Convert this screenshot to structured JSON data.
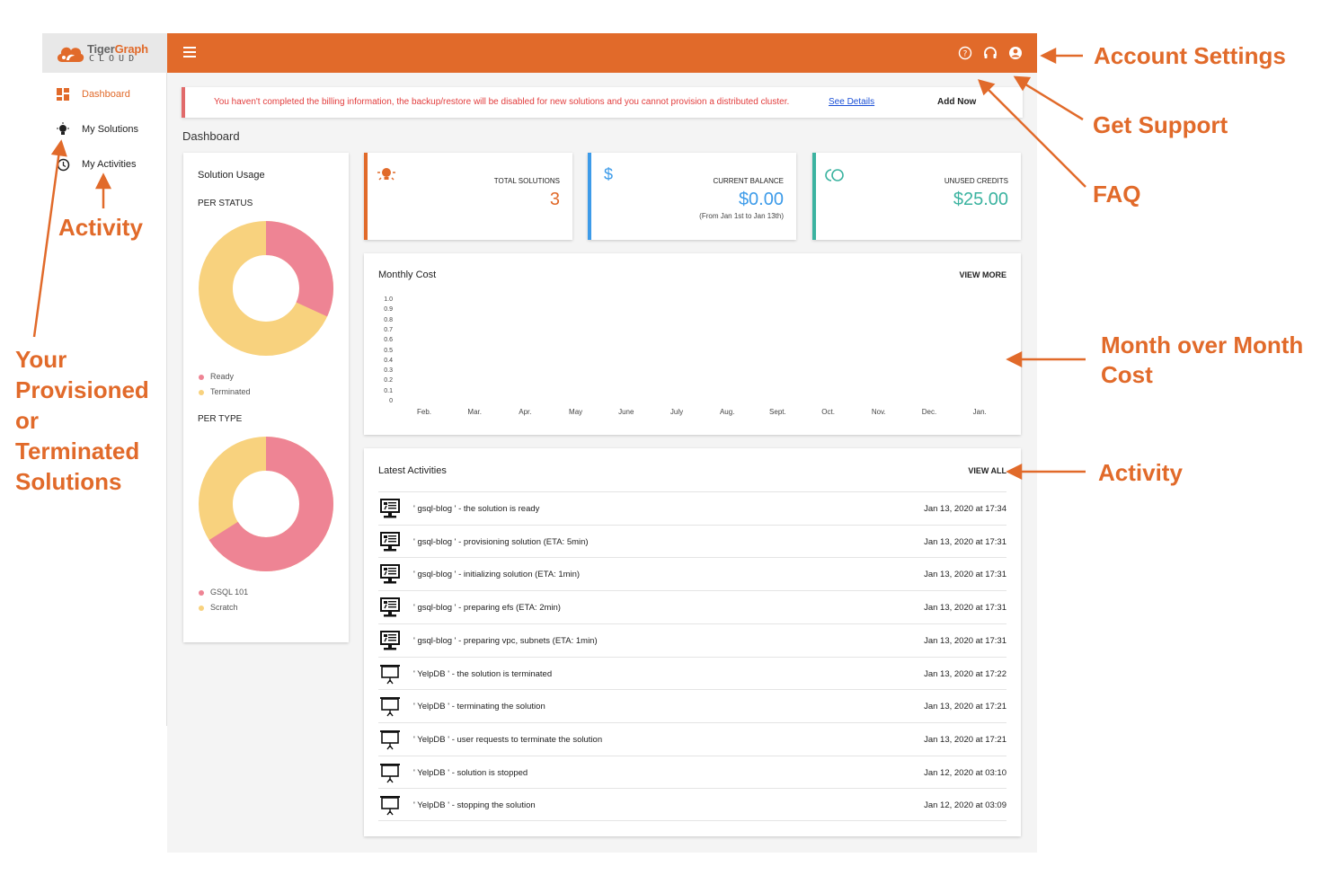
{
  "app": {
    "brand_word_a": "Tiger",
    "brand_word_b": "Graph",
    "brand_sub": "CLOUD",
    "accent_color": "#e16a2a"
  },
  "sidebar": {
    "items": [
      {
        "label": "Dashboard",
        "icon": "dashboard-grid-icon",
        "active": true
      },
      {
        "label": "My Solutions",
        "icon": "bulb-icon",
        "active": false
      },
      {
        "label": "My Activities",
        "icon": "clock-icon",
        "active": false
      }
    ]
  },
  "topbar": {
    "icons": [
      "help-icon",
      "headset-icon",
      "account-icon"
    ]
  },
  "alert": {
    "message": "You haven't completed the billing information, the backup/restore will be disabled for new solutions and you cannot provision a distributed cluster.",
    "link": "See Details",
    "action": "Add Now"
  },
  "page_title": "Dashboard",
  "usage": {
    "title": "Solution Usage",
    "per_status": {
      "label": "PER STATUS",
      "legend": [
        {
          "name": "Ready",
          "color": "#ee8494"
        },
        {
          "name": "Terminated",
          "color": "#f8d27e"
        }
      ]
    },
    "per_type": {
      "label": "PER TYPE",
      "legend": [
        {
          "name": "GSQL 101",
          "color": "#ee8494"
        },
        {
          "name": "Scratch",
          "color": "#f8d27e"
        }
      ]
    }
  },
  "stats": [
    {
      "label": "TOTAL SOLUTIONS",
      "value": "3",
      "sub": "",
      "color": "#e16a2a",
      "icon": "bulb-icon"
    },
    {
      "label": "CURRENT BALANCE",
      "value": "$0.00",
      "sub": "(From Jan 1st to Jan 13th)",
      "color": "#3d9be9",
      "icon": "dollar-icon"
    },
    {
      "label": "UNUSED CREDITS",
      "value": "$25.00",
      "sub": "",
      "color": "#3bb3a0",
      "icon": "credits-icon"
    }
  ],
  "monthly_cost": {
    "title": "Monthly Cost",
    "action": "VIEW MORE",
    "y_ticks": [
      "1.0",
      "0.9",
      "0.8",
      "0.7",
      "0.6",
      "0.5",
      "0.4",
      "0.3",
      "0.2",
      "0.1",
      "0"
    ],
    "x_ticks": [
      "Feb.",
      "Mar.",
      "Apr.",
      "May",
      "June",
      "July",
      "Aug.",
      "Sept.",
      "Oct.",
      "Nov.",
      "Dec.",
      "Jan."
    ]
  },
  "activities": {
    "title": "Latest Activities",
    "action": "VIEW ALL",
    "rows": [
      {
        "text": "' gsql-blog ' - the solution is ready",
        "time": "Jan 13, 2020 at 17:34",
        "kind": "active"
      },
      {
        "text": "' gsql-blog ' - provisioning solution (ETA: 5min)",
        "time": "Jan 13, 2020 at 17:31",
        "kind": "active"
      },
      {
        "text": "' gsql-blog ' - initializing solution (ETA: 1min)",
        "time": "Jan 13, 2020 at 17:31",
        "kind": "active"
      },
      {
        "text": "' gsql-blog ' - preparing efs (ETA: 2min)",
        "time": "Jan 13, 2020 at 17:31",
        "kind": "active"
      },
      {
        "text": "' gsql-blog ' - preparing vpc, subnets (ETA: 1min)",
        "time": "Jan 13, 2020 at 17:31",
        "kind": "active"
      },
      {
        "text": "' YelpDB ' - the solution is terminated",
        "time": "Jan 13, 2020 at 17:22",
        "kind": "inactive"
      },
      {
        "text": "' YelpDB ' - terminating the solution",
        "time": "Jan 13, 2020 at 17:21",
        "kind": "inactive"
      },
      {
        "text": "' YelpDB ' - user requests to terminate the solution",
        "time": "Jan 13, 2020 at 17:21",
        "kind": "inactive"
      },
      {
        "text": "' YelpDB ' - solution is stopped",
        "time": "Jan 12, 2020 at 03:10",
        "kind": "inactive"
      },
      {
        "text": "' YelpDB ' - stopping the solution",
        "time": "Jan 12, 2020 at 03:09",
        "kind": "inactive"
      }
    ]
  },
  "annotations": {
    "account_settings": "Account Settings",
    "get_support": "Get Support",
    "faq": "FAQ",
    "month_over_month_line1": "Month over Month",
    "month_over_month_line2": "Cost",
    "activity_right": "Activity",
    "activity_left": "Activity",
    "provisioned_1": "Your",
    "provisioned_2": "Provisioned",
    "provisioned_3": "or",
    "provisioned_4": "Terminated",
    "provisioned_5": "Solutions"
  }
}
